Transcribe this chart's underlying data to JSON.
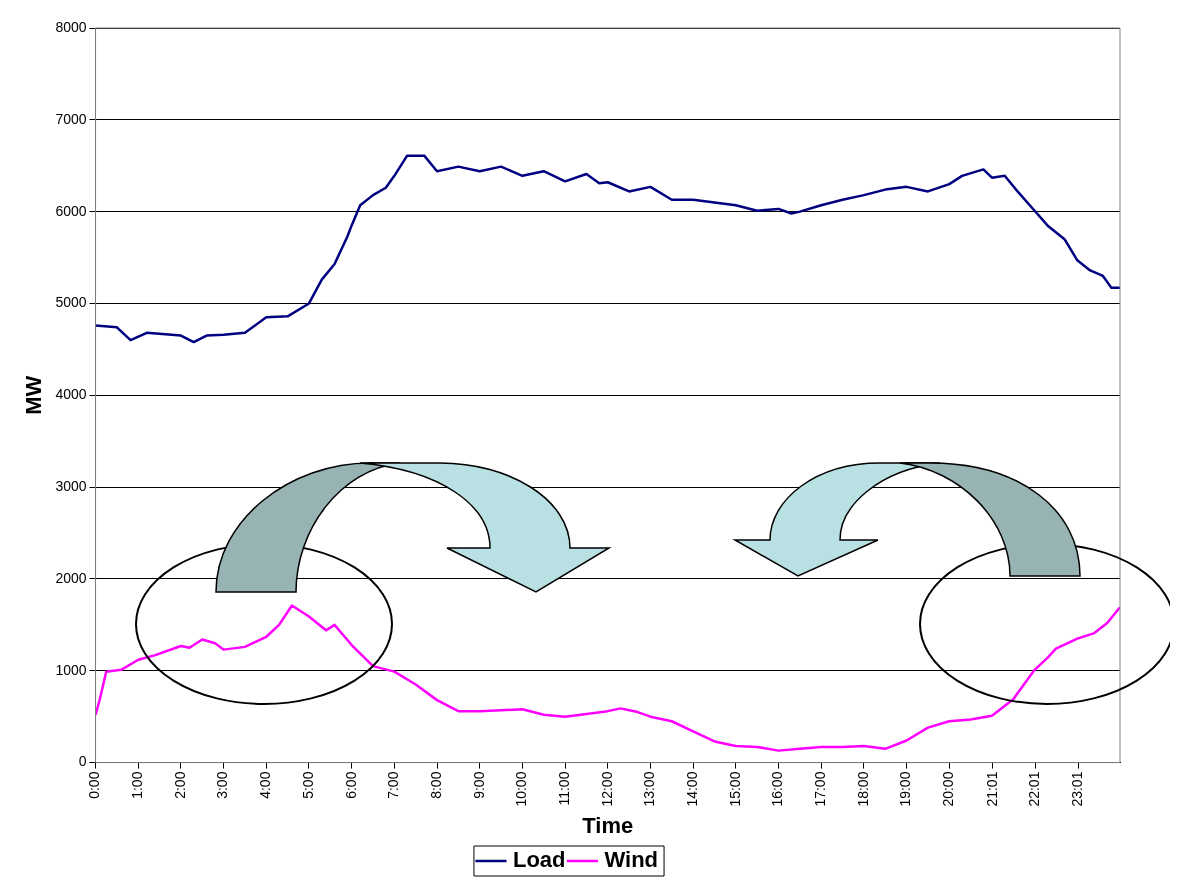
{
  "chart_data": {
    "type": "line",
    "xlabel": "Time",
    "ylabel": "MW",
    "xlim": [
      0,
      24
    ],
    "xticks": [
      {
        "value": 0,
        "label": "0:00"
      },
      {
        "value": 1,
        "label": "1:00"
      },
      {
        "value": 2,
        "label": "2:00"
      },
      {
        "value": 3,
        "label": "3:00"
      },
      {
        "value": 4,
        "label": "4:00"
      },
      {
        "value": 5,
        "label": "5:00"
      },
      {
        "value": 6,
        "label": "6:00"
      },
      {
        "value": 7,
        "label": "7:00"
      },
      {
        "value": 8,
        "label": "8:00"
      },
      {
        "value": 9,
        "label": "9:00"
      },
      {
        "value": 10,
        "label": "10:00"
      },
      {
        "value": 11,
        "label": "11:00"
      },
      {
        "value": 12,
        "label": "12:00"
      },
      {
        "value": 13,
        "label": "13:00"
      },
      {
        "value": 14,
        "label": "14:00"
      },
      {
        "value": 15,
        "label": "15:00"
      },
      {
        "value": 16,
        "label": "16:00"
      },
      {
        "value": 17,
        "label": "17:00"
      },
      {
        "value": 18,
        "label": "18:00"
      },
      {
        "value": 19,
        "label": "19:00"
      },
      {
        "value": 20,
        "label": "20:00"
      },
      {
        "value": 21.0167,
        "label": "21:01"
      },
      {
        "value": 22.0167,
        "label": "22:01"
      },
      {
        "value": 23.0167,
        "label": "23:01"
      }
    ],
    "ylim": [
      0,
      8000
    ],
    "yticks": [
      0,
      1000,
      2000,
      3000,
      4000,
      5000,
      6000,
      7000,
      8000
    ],
    "grid": "y",
    "legend": "bottom",
    "marker": "none",
    "line_style": "solid",
    "series": [
      {
        "name": "Load",
        "color": "#000080",
        "x": [
          0,
          0.5,
          0.82,
          1.2,
          2,
          2.3,
          2.6,
          3,
          3.5,
          4,
          4.5,
          5,
          5.3,
          5.6,
          5.9,
          6,
          6.2,
          6.5,
          6.8,
          7,
          7.3,
          7.7,
          8,
          8.5,
          9,
          9.5,
          10,
          10.5,
          11,
          11.5,
          11.8,
          12,
          12.5,
          13,
          13.5,
          14,
          14.5,
          15,
          15.5,
          16,
          16.3,
          16.5,
          17,
          17.5,
          18,
          18.5,
          19,
          19.5,
          20,
          20.3,
          20.8,
          21,
          21.3,
          21.6,
          22,
          22.3,
          22.7,
          23,
          23.3,
          23.6,
          23.8,
          24
        ],
        "values": [
          4760,
          4740,
          4600,
          4680,
          4650,
          4580,
          4650,
          4660,
          4680,
          4850,
          4860,
          5000,
          5260,
          5430,
          5730,
          5850,
          6070,
          6180,
          6260,
          6390,
          6610,
          6610,
          6440,
          6490,
          6440,
          6490,
          6390,
          6440,
          6330,
          6410,
          6310,
          6320,
          6220,
          6270,
          6130,
          6130,
          6100,
          6070,
          6010,
          6030,
          5980,
          6000,
          6070,
          6130,
          6180,
          6240,
          6270,
          6220,
          6300,
          6390,
          6460,
          6370,
          6390,
          6220,
          6010,
          5850,
          5700,
          5470,
          5360,
          5300,
          5170,
          5170
        ]
      },
      {
        "name": "Wind",
        "color": "#ff00ff",
        "x": [
          0,
          0.1,
          0.25,
          0.6,
          1,
          1.4,
          2,
          2.2,
          2.5,
          2.8,
          3,
          3.5,
          4,
          4.3,
          4.6,
          5,
          5.4,
          5.6,
          6,
          6.5,
          7,
          7.5,
          8,
          8.5,
          9,
          9.5,
          10,
          10.5,
          11,
          11.5,
          12,
          12.3,
          12.7,
          13,
          13.5,
          14,
          14.5,
          15,
          15.5,
          16,
          16.5,
          17,
          17.5,
          18,
          18.5,
          19,
          19.5,
          20,
          20.5,
          21,
          21.5,
          22,
          22.3,
          22.5,
          23,
          23.4,
          23.7,
          24
        ],
        "values": [
          520,
          690,
          990,
          1010,
          1120,
          1170,
          1270,
          1250,
          1340,
          1300,
          1230,
          1260,
          1370,
          1500,
          1710,
          1590,
          1440,
          1500,
          1280,
          1050,
          990,
          850,
          680,
          560,
          560,
          570,
          580,
          520,
          500,
          530,
          560,
          590,
          550,
          500,
          450,
          340,
          230,
          180,
          170,
          130,
          150,
          170,
          170,
          180,
          150,
          240,
          380,
          450,
          470,
          510,
          690,
          1010,
          1140,
          1240,
          1350,
          1410,
          1520,
          1690
        ]
      }
    ]
  }
}
